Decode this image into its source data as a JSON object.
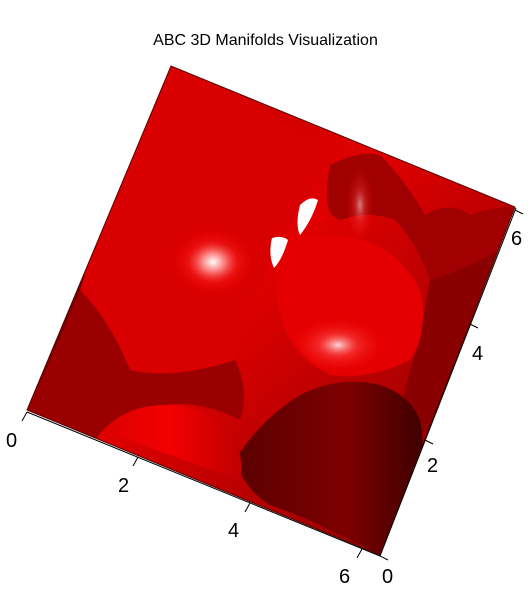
{
  "title": "ABC 3D Manifolds Visualization",
  "surface_color": "#d40000",
  "axes": {
    "front_axis_ticks": [
      "0",
      "2",
      "4",
      "6"
    ],
    "right_axis_ticks": [
      "0",
      "2",
      "4",
      "6"
    ]
  }
}
